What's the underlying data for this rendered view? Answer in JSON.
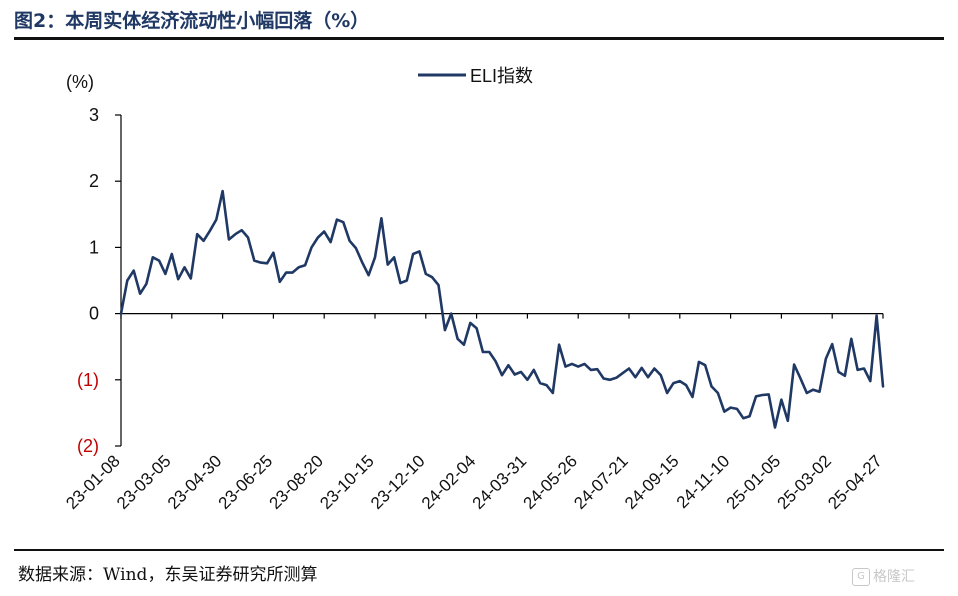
{
  "header": {
    "title": "图2：本周实体经济流动性小幅回落（%）"
  },
  "footer": {
    "source": "数据来源：Wind，东吴证券研究所测算",
    "watermark": "格隆汇"
  },
  "chart_data": {
    "type": "line",
    "title": "",
    "ylabel": "(%)",
    "xlabel": "",
    "ylim": [
      -2,
      3
    ],
    "y_ticks": [
      3,
      2,
      1,
      0,
      -1,
      -2
    ],
    "y_tick_labels": [
      "3",
      "2",
      "1",
      "0",
      "(1)",
      "(2)"
    ],
    "x_tick_labels": [
      "23-01-08",
      "23-03-05",
      "23-04-30",
      "23-06-25",
      "23-08-20",
      "23-10-15",
      "23-12-10",
      "24-02-04",
      "24-03-31",
      "24-05-26",
      "24-07-21",
      "24-09-15",
      "24-11-10",
      "25-01-05",
      "25-03-02",
      "25-04-27"
    ],
    "legend": {
      "position": "top-center"
    },
    "grid": false,
    "colors": {
      "series": "#1f3864",
      "negative_tick": "#c00000"
    },
    "series": [
      {
        "name": "ELI指数",
        "start_date": "2023-01-08",
        "interval_days": 7,
        "values": [
          0.0,
          0.5,
          0.65,
          0.3,
          0.45,
          0.85,
          0.8,
          0.6,
          0.9,
          0.52,
          0.7,
          0.53,
          1.2,
          1.1,
          1.25,
          1.42,
          1.85,
          1.12,
          1.2,
          1.26,
          1.15,
          0.8,
          0.77,
          0.76,
          0.92,
          0.48,
          0.62,
          0.62,
          0.7,
          0.73,
          1.0,
          1.15,
          1.24,
          1.08,
          1.42,
          1.38,
          1.1,
          0.99,
          0.77,
          0.58,
          0.85,
          1.44,
          0.74,
          0.85,
          0.46,
          0.5,
          0.9,
          0.94,
          0.6,
          0.55,
          0.43,
          -0.25,
          0.0,
          -0.38,
          -0.47,
          -0.14,
          -0.22,
          -0.58,
          -0.58,
          -0.72,
          -0.93,
          -0.78,
          -0.92,
          -0.88,
          -1.0,
          -0.85,
          -1.05,
          -1.08,
          -1.2,
          -0.47,
          -0.8,
          -0.76,
          -0.8,
          -0.76,
          -0.85,
          -0.84,
          -0.98,
          -1.0,
          -0.97,
          -0.9,
          -0.83,
          -0.96,
          -0.82,
          -0.96,
          -0.83,
          -0.93,
          -1.2,
          -1.05,
          -1.02,
          -1.08,
          -1.26,
          -0.73,
          -0.78,
          -1.1,
          -1.2,
          -1.48,
          -1.42,
          -1.44,
          -1.58,
          -1.55,
          -1.25,
          -1.23,
          -1.22,
          -1.72,
          -1.3,
          -1.62,
          -0.77,
          -0.98,
          -1.2,
          -1.15,
          -1.18,
          -0.68,
          -0.46,
          -0.88,
          -0.94,
          -0.38,
          -0.85,
          -0.83,
          -1.02,
          -0.03,
          -1.1
        ]
      }
    ]
  }
}
